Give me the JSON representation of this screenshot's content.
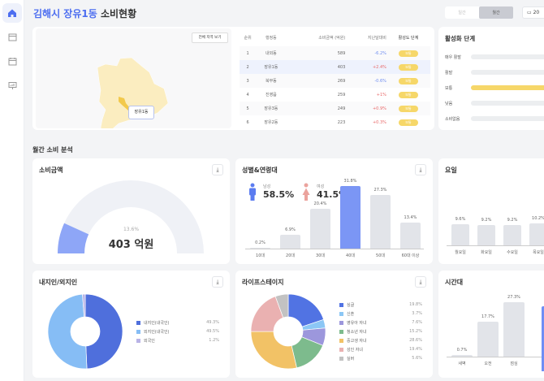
{
  "header": {
    "title_highlight": "김해시 장유1동",
    "title_rest": " 소비현황",
    "toggle": [
      "일간",
      "월간"
    ],
    "date": "20"
  },
  "sidebar": {
    "items": [
      "home-icon",
      "store-icon",
      "calendar-icon",
      "presentation-chart-icon"
    ]
  },
  "map": {
    "view_all": "전체 지역 보기",
    "selected_label": "장유1동"
  },
  "ranking": {
    "headers": [
      "순위",
      "행정동",
      "소비금액 (억원)",
      "지난달대비",
      "활성도 단계"
    ],
    "rows": [
      [
        "1",
        "내외동",
        "589",
        "-6.2%",
        "보통"
      ],
      [
        "2",
        "장유1동",
        "403",
        "+2.4%",
        "보통"
      ],
      [
        "3",
        "북부동",
        "269",
        "-0.6%",
        "보통"
      ],
      [
        "4",
        "진영읍",
        "259",
        "+1%",
        "보통"
      ],
      [
        "5",
        "장유3동",
        "249",
        "+0.9%",
        "보통"
      ],
      [
        "6",
        "장유2동",
        "223",
        "+0.3%",
        "보통"
      ]
    ]
  },
  "activation": {
    "title": "활성화 단계",
    "levels": [
      "매우 활발",
      "활발",
      "보통",
      "낮음",
      "소비없음"
    ],
    "active_index": 2,
    "color": "#f6d769"
  },
  "section_title": "월간 소비 분석",
  "amount": {
    "title": "소비금액",
    "percent": "13.6%",
    "fraction": 0.136,
    "value": "403 억원"
  },
  "gender_age": {
    "title": "성별&연령대",
    "male_label": "남성",
    "male": "58.5%",
    "female_label": "여성",
    "female": "41.5%"
  },
  "weekday": {
    "title": "요일"
  },
  "resident": {
    "title": "내지인/외지인"
  },
  "lifestage": {
    "title": "라이프스테이지"
  },
  "timeslot": {
    "title": "시간대"
  },
  "chart_data": [
    {
      "type": "bar",
      "title": "성별&연령대",
      "categories": [
        "10대",
        "20대",
        "30대",
        "40대",
        "50대",
        "60대 이상"
      ],
      "values": [
        0.2,
        6.9,
        20.4,
        31.8,
        27.3,
        13.4
      ],
      "labels": [
        "0.2%",
        "6.9%",
        "20.4%",
        "31.8%",
        "27.3%",
        "13.4%"
      ],
      "highlight": 3
    },
    {
      "type": "bar",
      "title": "요일",
      "categories": [
        "월요일",
        "화요일",
        "수요일",
        "목요일"
      ],
      "values": [
        9.6,
        9.2,
        9.2,
        10.2
      ],
      "labels": [
        "9.6%",
        "9.2%",
        "9.2%",
        "10.2%"
      ]
    },
    {
      "type": "bar",
      "title": "시간대",
      "categories": [
        "새벽",
        "오전",
        "점심"
      ],
      "values": [
        0.7,
        17.7,
        27.3
      ],
      "labels": [
        "0.7%",
        "17.7%",
        "27.3%"
      ]
    },
    {
      "type": "pie",
      "title": "내지인/외지인",
      "categories": [
        "내지인(내국인)",
        "외지인(내국인)",
        "외국인"
      ],
      "values": [
        49.3,
        49.5,
        1.2
      ],
      "labels": [
        "49.3%",
        "49.5%",
        "1.2%"
      ],
      "colors": [
        "#4f6fdc",
        "#86bdf5",
        "#b9b3e6"
      ]
    },
    {
      "type": "pie",
      "title": "라이프스테이지",
      "categories": [
        "싱글",
        "신혼",
        "영유아 자녀",
        "청소년 자녀",
        "중고생 자녀",
        "성인 자녀",
        "실버"
      ],
      "values": [
        19.8,
        3.7,
        7.6,
        15.2,
        28.6,
        19.4,
        5.6
      ],
      "labels": [
        "19.8%",
        "3.7%",
        "7.6%",
        "15.2%",
        "28.6%",
        "19.4%",
        "5.6%"
      ],
      "colors": [
        "#5173e3",
        "#8cc7f5",
        "#9c97dc",
        "#7dbb8d",
        "#f2c266",
        "#eab1b1",
        "#c2c2c2"
      ]
    }
  ]
}
